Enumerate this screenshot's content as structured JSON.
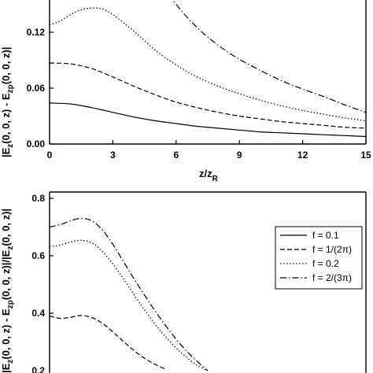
{
  "chart_data": [
    {
      "type": "line",
      "xlabel": "z/z",
      "xlabel_subscript": "R",
      "ylabel_parts": [
        "|E",
        "z",
        "(0, 0, z) - E",
        "zp",
        "(0, 0, z)|"
      ],
      "xlim": [
        0,
        15
      ],
      "ylim": [
        0,
        0.18
      ],
      "xticks": [
        0,
        3,
        6,
        9,
        12,
        15
      ],
      "xtick_labels": [
        "0",
        "3",
        "6",
        "9",
        "12",
        "15"
      ],
      "yticks": [
        0,
        0.06,
        0.12
      ],
      "ytick_labels": [
        "0.00",
        "0.06",
        "0.12"
      ],
      "grid": false,
      "series": [
        {
          "style": "solid",
          "x": [
            0,
            1,
            2,
            3,
            4,
            5,
            6,
            7,
            8,
            9,
            10,
            11,
            12,
            13,
            14,
            15
          ],
          "y": [
            0.044,
            0.043,
            0.039,
            0.034,
            0.029,
            0.025,
            0.022,
            0.019,
            0.017,
            0.015,
            0.013,
            0.012,
            0.011,
            0.01,
            0.009,
            0.008
          ]
        },
        {
          "style": "dashed",
          "x": [
            0,
            1,
            2,
            3,
            4,
            5,
            6,
            7,
            8,
            9,
            10,
            11,
            12,
            13,
            14,
            15
          ],
          "y": [
            0.087,
            0.086,
            0.081,
            0.072,
            0.062,
            0.053,
            0.045,
            0.039,
            0.034,
            0.03,
            0.027,
            0.024,
            0.022,
            0.02,
            0.018,
            0.017
          ]
        },
        {
          "style": "dotted",
          "x": [
            0,
            0.5,
            1,
            1.5,
            2,
            2.5,
            3,
            4,
            5,
            6,
            7,
            8,
            9,
            10,
            11,
            12,
            13,
            14,
            15
          ],
          "y": [
            0.128,
            0.132,
            0.139,
            0.144,
            0.146,
            0.145,
            0.139,
            0.121,
            0.101,
            0.085,
            0.072,
            0.062,
            0.054,
            0.047,
            0.041,
            0.036,
            0.032,
            0.028,
            0.025
          ]
        },
        {
          "style": "dashdot",
          "x": [
            5,
            6,
            7,
            8,
            9,
            10,
            11,
            12,
            13,
            14,
            15
          ],
          "y": [
            0.182,
            0.15,
            0.125,
            0.106,
            0.091,
            0.079,
            0.068,
            0.059,
            0.051,
            0.042,
            0.034
          ]
        }
      ]
    },
    {
      "type": "line",
      "ylabel_parts": [
        "|E",
        "z",
        "(0, 0, z) - E",
        "zp",
        "(0, 0, z)|/|E",
        "z",
        "(0, 0, z)|"
      ],
      "xlim": [
        0,
        15
      ],
      "ylim": [
        0.2,
        0.8
      ],
      "yticks": [
        0.4,
        0.6,
        0.8
      ],
      "ytick_labels": [
        "0.4",
        "0.6",
        "0.8"
      ],
      "partial_tick_label": "0.2",
      "grid": false,
      "legend_position": "top-right",
      "series": [
        {
          "name": "f = 0.1",
          "style": "solid",
          "x": [],
          "y": []
        },
        {
          "name": "f = 1/(2π)",
          "style": "dashed",
          "x": [
            0,
            0.5,
            1,
            1.5,
            2,
            2.5,
            3,
            3.5,
            4,
            4.5,
            5,
            5.5
          ],
          "y": [
            0.39,
            0.382,
            0.386,
            0.392,
            0.385,
            0.365,
            0.335,
            0.302,
            0.27,
            0.243,
            0.222,
            0.205
          ]
        },
        {
          "name": "f = 0.2",
          "style": "dotted",
          "x": [
            0,
            0.5,
            1,
            1.5,
            2,
            2.5,
            3,
            3.5,
            4,
            4.5,
            5,
            5.5,
            6,
            6.5,
            7,
            7.5
          ],
          "y": [
            0.632,
            0.637,
            0.648,
            0.654,
            0.645,
            0.615,
            0.572,
            0.52,
            0.465,
            0.412,
            0.362,
            0.318,
            0.279,
            0.246,
            0.218,
            0.2
          ]
        },
        {
          "name": "f = 2/(3π)",
          "style": "dashdot",
          "x": [
            0,
            0.5,
            1,
            1.5,
            2,
            2.5,
            3,
            3.5,
            4,
            4.5,
            5,
            5.5,
            6,
            6.5,
            7,
            7.5
          ],
          "y": [
            0.7,
            0.708,
            0.722,
            0.73,
            0.722,
            0.69,
            0.64,
            0.58,
            0.52,
            0.463,
            0.408,
            0.357,
            0.31,
            0.268,
            0.232,
            0.2
          ]
        }
      ]
    }
  ]
}
